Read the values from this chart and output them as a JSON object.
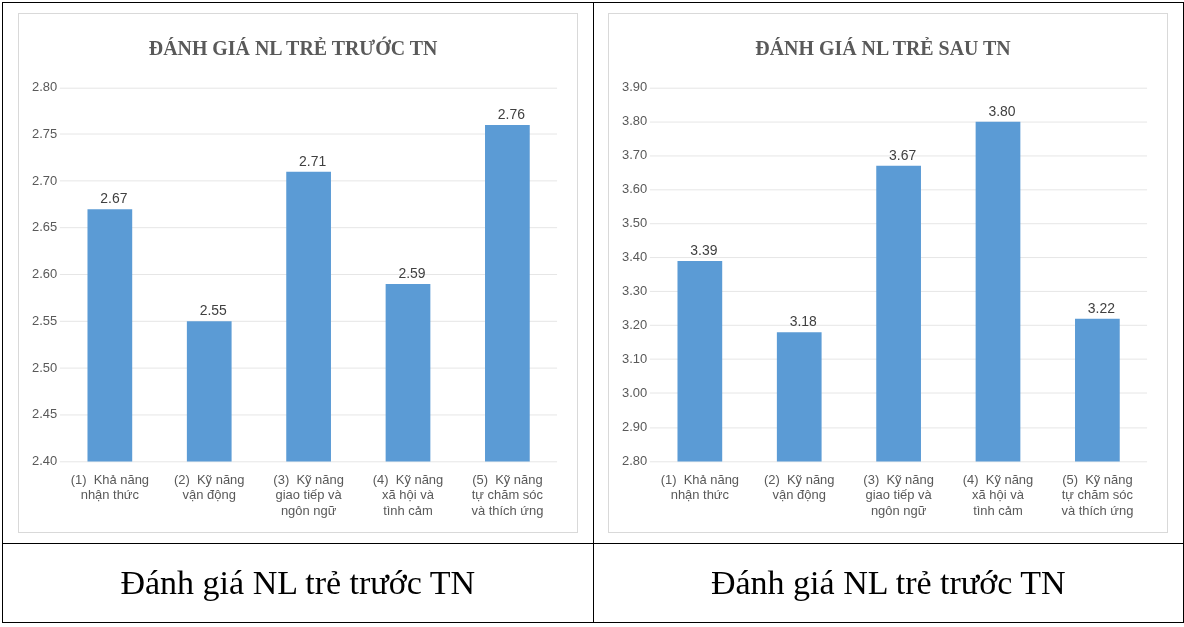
{
  "chart_data": [
    {
      "type": "bar",
      "title": "ĐÁNH GIÁ NL TRẺ TRƯỚC TN",
      "categories": [
        "(1)  Khả năng nhận thức",
        "(2)  Kỹ năng vận động",
        "(3)  Kỹ năng giao tiếp và ngôn ngữ",
        "(4)  Kỹ năng xã hội và tình cảm",
        "(5)  Kỹ năng tự chăm sóc và thích ứng"
      ],
      "values": [
        2.67,
        2.55,
        2.71,
        2.59,
        2.76
      ],
      "value_labels": [
        "2.67",
        "2.55",
        "2.71",
        "2.59",
        "2.76"
      ],
      "color": "#5b9bd5",
      "ylim": [
        2.4,
        2.8
      ],
      "yticks": [
        {
          "value": 2.4,
          "label": "2.40"
        },
        {
          "value": 2.45,
          "label": "2.45"
        },
        {
          "value": 2.5,
          "label": "2.50"
        },
        {
          "value": 2.55,
          "label": "2.55"
        },
        {
          "value": 2.6,
          "label": "2.60"
        },
        {
          "value": 2.65,
          "label": "2.65"
        },
        {
          "value": 2.7,
          "label": "2.70"
        },
        {
          "value": 2.75,
          "label": "2.75"
        },
        {
          "value": 2.8,
          "label": "2.80"
        }
      ],
      "grid": "y",
      "legend": false,
      "annotations": [
        "Đánh giá NL trẻ trước TN"
      ]
    },
    {
      "type": "bar",
      "title": "ĐÁNH GIÁ NL TRẺ SAU TN",
      "categories": [
        "(1)  Khả năng nhận thức",
        "(2)  Kỹ năng vận động",
        "(3)  Kỹ năng giao tiếp và ngôn ngữ",
        "(4)  Kỹ năng xã hội và tình cảm",
        "(5)  Kỹ năng tự chăm sóc và thích ứng"
      ],
      "values": [
        3.39,
        3.18,
        3.67,
        3.8,
        3.22
      ],
      "value_labels": [
        "3.39",
        "3.18",
        "3.67",
        "3.80",
        "3.22"
      ],
      "color": "#5b9bd5",
      "ylim": [
        2.8,
        3.9
      ],
      "yticks": [
        {
          "value": 2.8,
          "label": "2.80"
        },
        {
          "value": 2.9,
          "label": "2.90"
        },
        {
          "value": 3.0,
          "label": "3.00"
        },
        {
          "value": 3.1,
          "label": "3.10"
        },
        {
          "value": 3.2,
          "label": "3.20"
        },
        {
          "value": 3.3,
          "label": "3.30"
        },
        {
          "value": 3.4,
          "label": "3.40"
        },
        {
          "value": 3.5,
          "label": "3.50"
        },
        {
          "value": 3.6,
          "label": "3.60"
        },
        {
          "value": 3.7,
          "label": "3.70"
        },
        {
          "value": 3.8,
          "label": "3.80"
        },
        {
          "value": 3.9,
          "label": "3.90"
        }
      ],
      "grid": "y",
      "legend": false,
      "annotations": [
        "Đánh giá NL trẻ trước TN"
      ]
    }
  ]
}
